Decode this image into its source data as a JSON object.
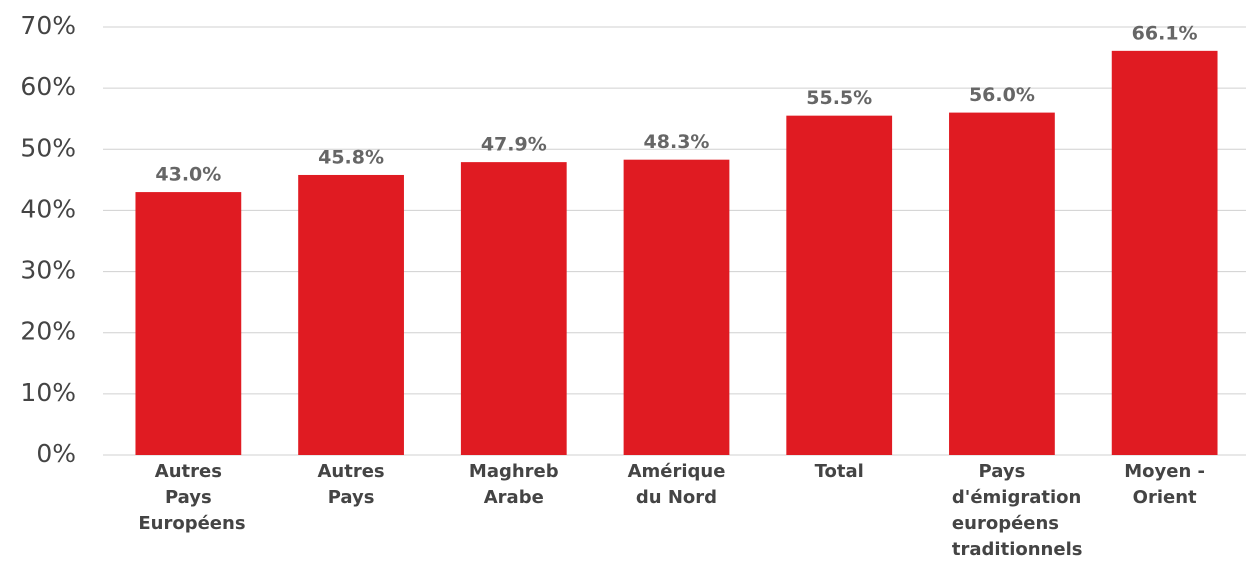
{
  "chart_data": {
    "type": "bar",
    "categories": [
      "Autres Pays Européens",
      "Autres Pays",
      "Maghreb Arabe",
      "Amérique du Nord",
      "Total",
      "Pays d'émigration européens traditionnels",
      "Moyen -Orient"
    ],
    "values": [
      43.0,
      45.8,
      47.9,
      48.3,
      55.5,
      56.0,
      66.1
    ],
    "value_labels": [
      "43.0%",
      "45.8%",
      "47.9%",
      "48.3%",
      "55.5%",
      "56.0%",
      "66.1%"
    ],
    "color": "#e01b22",
    "ylim": [
      0,
      70
    ],
    "yticks": [
      {
        "value": 0,
        "label": "0%"
      },
      {
        "value": 10,
        "label": "10%"
      },
      {
        "value": 20,
        "label": "20%"
      },
      {
        "value": 30,
        "label": "30%"
      },
      {
        "value": 40,
        "label": "40%"
      },
      {
        "value": 50,
        "label": "50%"
      },
      {
        "value": 60,
        "label": "60%"
      },
      {
        "value": 70,
        "label": "70%"
      }
    ],
    "grid": true
  }
}
